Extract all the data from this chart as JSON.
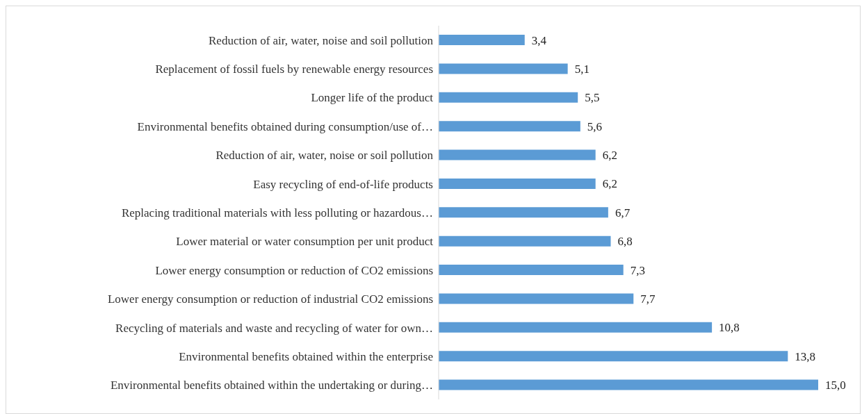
{
  "chart_data": {
    "type": "bar",
    "orientation": "horizontal",
    "categories": [
      "Reduction of air, water, noise and soil pollution",
      "Replacement of fossil fuels by renewable energy resources",
      "Longer life of the product",
      "Environmental benefits obtained during consumption/use of…",
      "Reduction of air, water, noise or soil pollution",
      "Easy recycling of end-of-life products",
      "Replacing traditional materials with less polluting or hazardous…",
      "Lower material or water consumption per unit product",
      "Lower energy consumption or reduction of CO2 emissions",
      "Lower energy consumption or reduction of industrial CO2 emissions",
      "Recycling of materials and waste and recycling of water for own…",
      "Environmental benefits obtained within the enterprise",
      "Environmental benefits obtained within the undertaking or during…"
    ],
    "values": [
      3.4,
      5.1,
      5.5,
      5.6,
      6.2,
      6.2,
      6.7,
      6.8,
      7.3,
      7.7,
      10.8,
      13.8,
      15.0
    ],
    "value_labels": [
      "3,4",
      "5,1",
      "5,5",
      "5,6",
      "6,2",
      "6,2",
      "6,7",
      "6,8",
      "7,3",
      "7,7",
      "10,8",
      "13,8",
      "15,0"
    ],
    "color": "#5b9bd5",
    "grid": false,
    "legend": false
  }
}
